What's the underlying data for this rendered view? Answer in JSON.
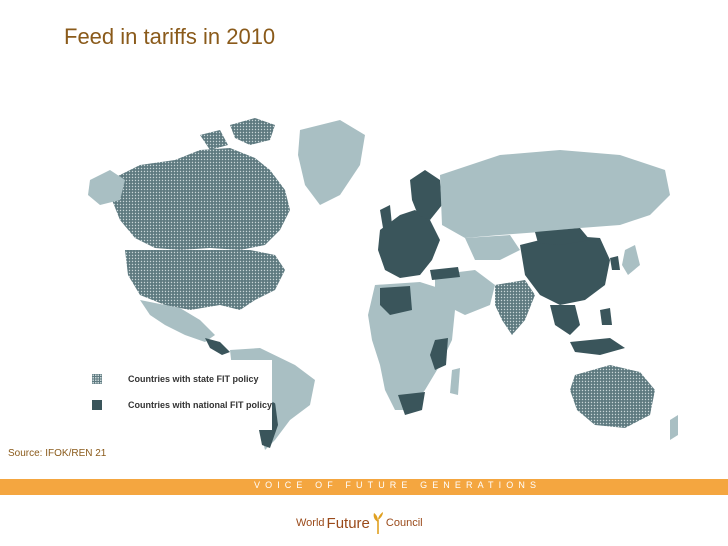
{
  "slide": {
    "title": "Feed in tariffs in 2010",
    "source": "Source: IFOK/REN 21"
  },
  "legend": {
    "items": [
      {
        "label": "Countries with state FIT policy",
        "color": "#5e7a80",
        "pattern": "dotted"
      },
      {
        "label": "Countries with national FIT policy",
        "color": "#3a555b",
        "pattern": "solid"
      }
    ]
  },
  "colors": {
    "title": "#8a5a1a",
    "other_countries": "#a9bfc3",
    "state_fit": "#5e7a80",
    "national_fit": "#3a555b",
    "bar": "#f4a640",
    "logo": "#9a4a1a"
  },
  "footer": {
    "tagline": "VOICE OF FUTURE GENERATIONS",
    "logo_word1": "World",
    "logo_word2": "Future",
    "logo_word3": "Council",
    "logo_icon": "sprout-icon"
  }
}
